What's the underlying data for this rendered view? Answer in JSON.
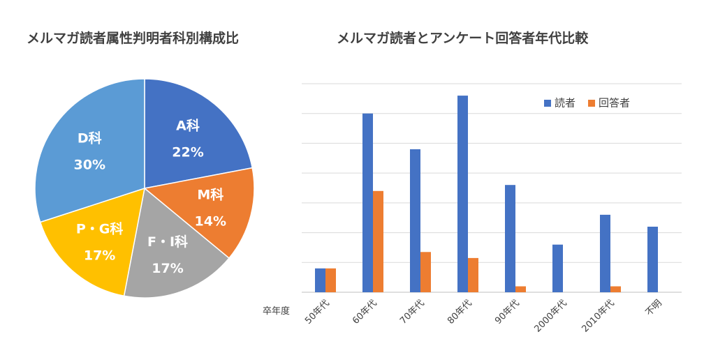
{
  "chart_data": [
    {
      "type": "pie",
      "title": "メルマガ読者属性判明者科別構成比",
      "slices": [
        {
          "name": "A科",
          "value": 22,
          "label": "22%",
          "color": "#4472c4"
        },
        {
          "name": "M科",
          "value": 14,
          "label": "14%",
          "color": "#ed7d31"
        },
        {
          "name": "F・I科",
          "value": 17,
          "label": "17%",
          "color": "#a5a5a5"
        },
        {
          "name": "P・G科",
          "value": 17,
          "label": "17%",
          "color": "#ffc000"
        },
        {
          "name": "D科",
          "value": 30,
          "label": "30%",
          "color": "#5b9bd5"
        }
      ]
    },
    {
      "type": "bar",
      "title": "メルマガ読者とアンケート回答者年代比較",
      "xlabel": "卒年度",
      "categories": [
        "50年代",
        "60年代",
        "70年代",
        "80年代",
        "90年代",
        "2000年代",
        "2010年代",
        "不明"
      ],
      "series": [
        {
          "name": "読者",
          "color": "#4472c4",
          "values": [
            8,
            60,
            48,
            66,
            36,
            16,
            26,
            22
          ]
        },
        {
          "name": "回答者",
          "color": "#ed7d31",
          "values": [
            8,
            34,
            13.5,
            11.5,
            2,
            0,
            2,
            0
          ]
        }
      ],
      "ylim": [
        0,
        70
      ],
      "grid": true,
      "legend_position": "top-right"
    }
  ]
}
